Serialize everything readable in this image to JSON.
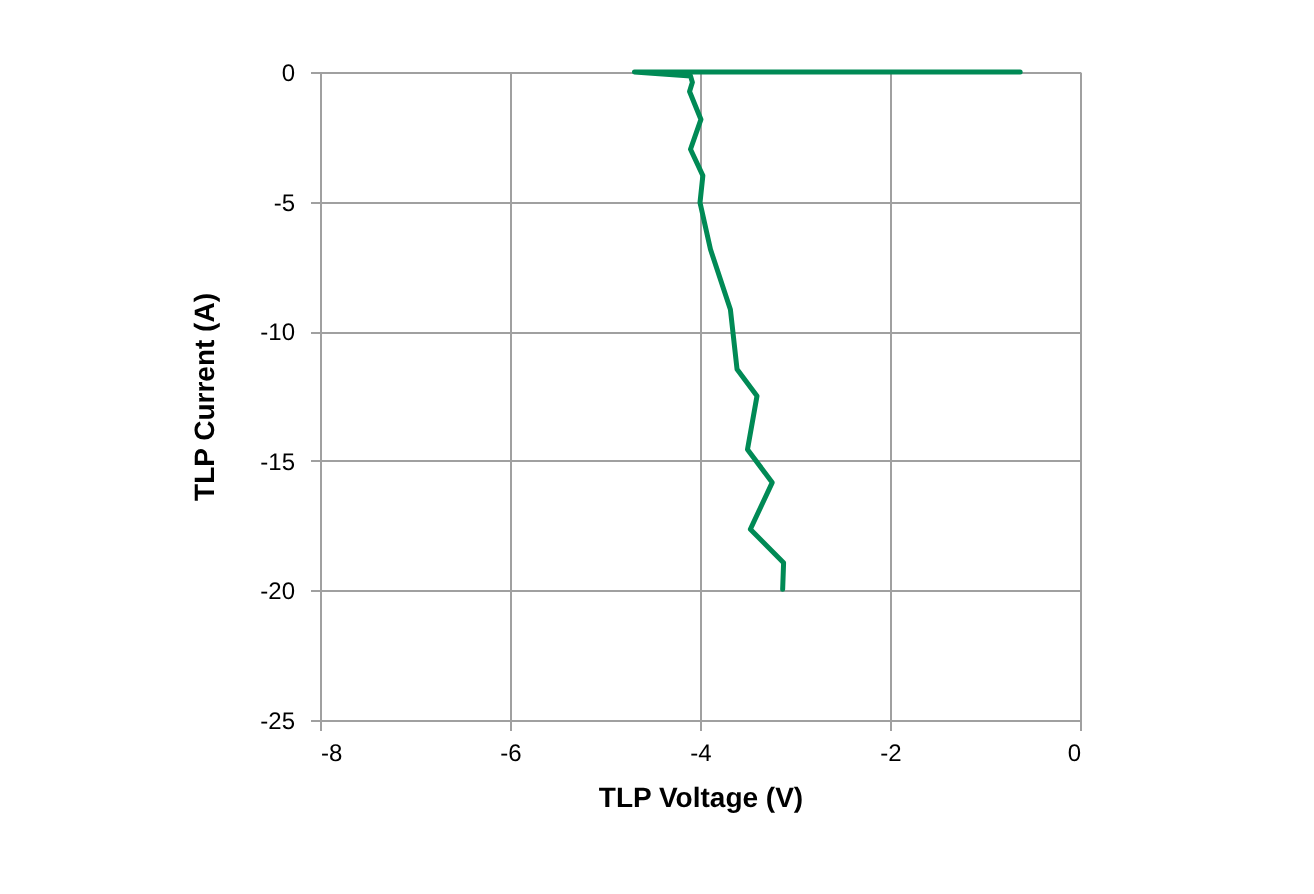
{
  "chart_data": {
    "type": "line",
    "xlabel": "TLP Voltage (V)",
    "ylabel": "TLP Current (A)",
    "x": [
      -0.63,
      -4.69,
      -4.1,
      -4.08,
      -4.11,
      -3.99,
      -4.1,
      -3.97,
      -4.0,
      -3.99,
      -3.89,
      -3.68,
      -3.61,
      -3.4,
      -3.5,
      -3.24,
      -3.47,
      -3.12,
      -3.13
    ],
    "series": [
      {
        "color": "#008a55",
        "values": [
          0,
          0,
          -0.15,
          -0.4,
          -0.75,
          -1.83,
          -2.98,
          -4.0,
          -5.04,
          -5.2,
          -6.84,
          -9.16,
          -11.47,
          -12.5,
          -14.56,
          -15.84,
          -17.64,
          -18.93,
          -19.96
        ]
      }
    ],
    "xlim": [
      -8,
      0
    ],
    "xticks": [
      -8,
      -6,
      -4,
      -2,
      0
    ],
    "ylim": [
      -25,
      0
    ],
    "yticks": [
      -25,
      -20,
      -15,
      -10,
      -5,
      0
    ],
    "grid": true,
    "marker": "none",
    "line_style": "solid"
  }
}
